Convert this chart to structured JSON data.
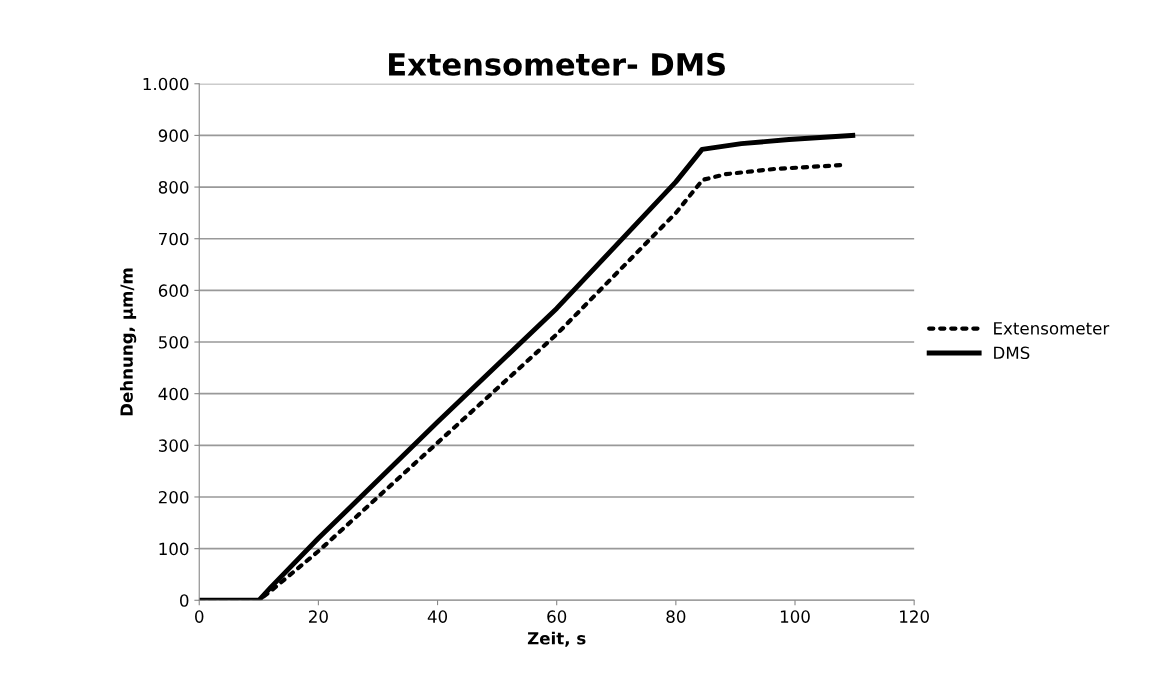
{
  "chart_data": {
    "type": "line",
    "title": "Extensometer- DMS",
    "xlabel": "Zeit, s",
    "ylabel": "Dehnung, µm/m",
    "xlim": [
      0,
      120
    ],
    "xticks": [
      0,
      20,
      40,
      60,
      80,
      100,
      120
    ],
    "ylim": [
      0,
      1000
    ],
    "yticks": [
      0,
      100,
      200,
      300,
      400,
      500,
      600,
      700,
      800,
      900,
      {
        "value": 1000,
        "label": "1.000"
      }
    ],
    "grid": "y",
    "legend": "right",
    "series": [
      {
        "name": "Extensometer",
        "color": "#000000",
        "line_style": "dotted",
        "x": [
          0,
          10,
          12,
          20,
          40,
          60,
          80,
          84.5,
          88.4,
          96.5,
          108.5
        ],
        "values": [
          0,
          0,
          18,
          95,
          305,
          515,
          750,
          814,
          825,
          835,
          843
        ]
      },
      {
        "name": "DMS",
        "color": "#000000",
        "line_style": "solid",
        "x": [
          0,
          10,
          12,
          20,
          40,
          60,
          80,
          84.4,
          91,
          99,
          109.7
        ],
        "values": [
          0,
          0,
          25,
          120,
          345,
          565,
          810,
          873,
          884,
          892,
          900
        ]
      }
    ]
  }
}
